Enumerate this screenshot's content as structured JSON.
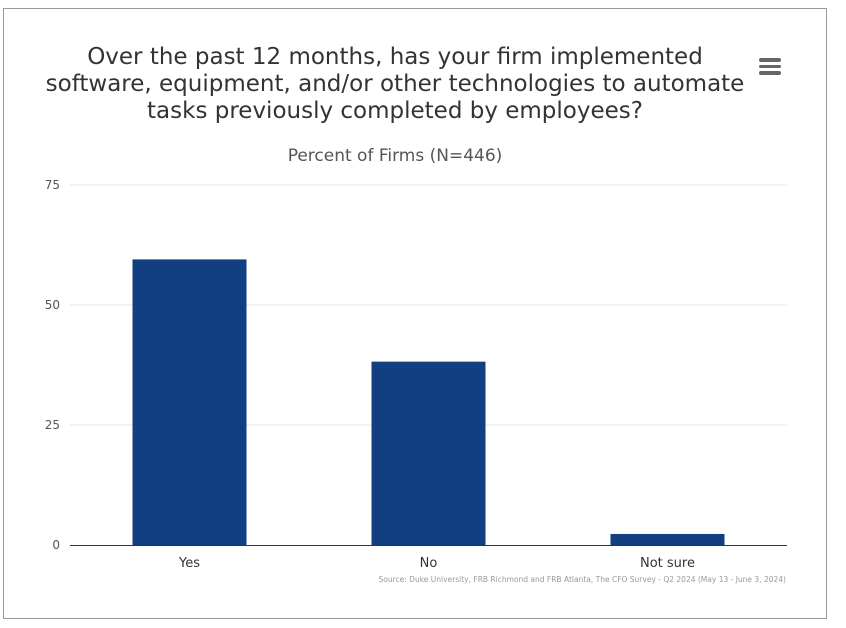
{
  "menu_icon": "hamburger-menu-icon",
  "colors": {
    "bar": "#123f81",
    "grid": "#e6e6e6",
    "axis": "#333333"
  },
  "chart_data": {
    "type": "bar",
    "title": "Over the past 12 months, has your firm implemented software, equipment, and/or other technologies to automate tasks previously completed by employees?",
    "subtitle": "Percent of Firms (N=446)",
    "categories": [
      "Yes",
      "No",
      "Not sure"
    ],
    "values": [
      59.5,
      38.2,
      2.3
    ],
    "ylim": [
      0,
      75
    ],
    "yticks": [
      "0",
      "25",
      "50",
      "75"
    ],
    "grid": true,
    "source": "Source: Duke University, FRB Richmond and FRB Atlanta, The CFO Survey - Q2 2024 (May 13 - June 3, 2024)"
  }
}
